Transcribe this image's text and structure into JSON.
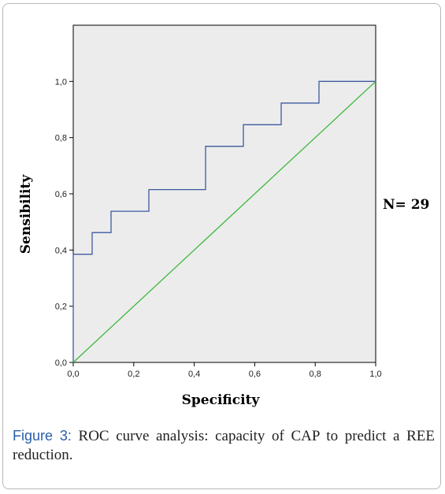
{
  "chart_data": {
    "type": "line",
    "xlabel": "Specificity",
    "ylabel": "Sensibility",
    "xlim": [
      0,
      1
    ],
    "ylim": [
      0,
      1.2
    ],
    "x_ticks": [
      "0,0",
      "0,2",
      "0,4",
      "0,6",
      "0,8",
      "1,0"
    ],
    "y_ticks": [
      "0,0",
      "0,2",
      "0,4",
      "0,6",
      "0,8",
      "1,0"
    ],
    "series": [
      {
        "color": "#3d5a9e",
        "x": [
          0,
          0,
          0.0625,
          0.0625,
          0.125,
          0.125,
          0.25,
          0.25,
          0.4375,
          0.4375,
          0.5625,
          0.5625,
          0.6875,
          0.6875,
          0.8125,
          0.8125,
          1.0
        ],
        "y": [
          0,
          0.385,
          0.385,
          0.462,
          0.462,
          0.538,
          0.538,
          0.615,
          0.615,
          0.769,
          0.769,
          0.846,
          0.846,
          0.923,
          0.923,
          1.0,
          1.0
        ]
      },
      {
        "color": "#3db83d",
        "x": [
          0,
          1
        ],
        "y": [
          0,
          1
        ]
      }
    ],
    "grid": false,
    "annotation": "N= 29"
  },
  "caption": {
    "label": "Figure 3:",
    "text": " ROC curve analysis: capacity of CAP to predict a REE reduction."
  }
}
